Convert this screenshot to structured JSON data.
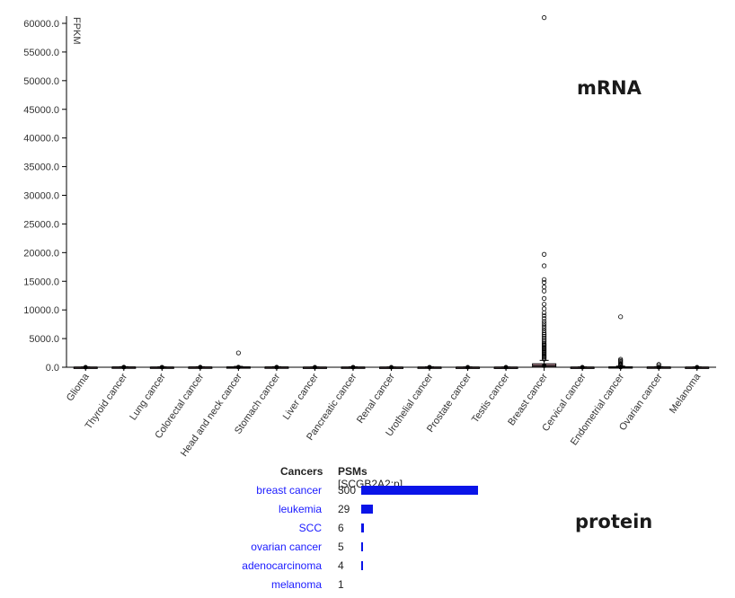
{
  "mrna_label": "mRNA",
  "protein_label": "protein",
  "chart_data": {
    "type": "box",
    "ylabel": "FPKM",
    "ylim": [
      0,
      60000
    ],
    "y_ticks": [
      "0.0",
      "5000.0",
      "10000.0",
      "15000.0",
      "20000.0",
      "25000.0",
      "30000.0",
      "35000.0",
      "40000.0",
      "45000.0",
      "50000.0",
      "55000.0",
      "60000.0"
    ],
    "y_tick_values": [
      0,
      5000,
      10000,
      15000,
      20000,
      25000,
      30000,
      35000,
      40000,
      45000,
      50000,
      55000,
      60000
    ],
    "categories": [
      "Glioma",
      "Thyroid cancer",
      "Lung cancer",
      "Colorectal cancer",
      "Head and neck cancer",
      "Stomach cancer",
      "Liver cancer",
      "Pancreatic cancer",
      "Renal cancer",
      "Urothelial cancer",
      "Prostate cancer",
      "Testis cancer",
      "Breast cancer",
      "Cervical cancer",
      "Endometrial cancer",
      "Ovarian cancer",
      "Melanoma"
    ],
    "boxes": [
      {
        "q1": 0,
        "median": 5,
        "q3": 20,
        "whisker_high": 60,
        "outliers": []
      },
      {
        "q1": 0,
        "median": 10,
        "q3": 40,
        "whisker_high": 100,
        "outliers": []
      },
      {
        "q1": 0,
        "median": 8,
        "q3": 30,
        "whisker_high": 80,
        "outliers": []
      },
      {
        "q1": 0,
        "median": 10,
        "q3": 35,
        "whisker_high": 90,
        "outliers": []
      },
      {
        "q1": 0,
        "median": 15,
        "q3": 60,
        "whisker_high": 150,
        "outliers": [
          2500
        ]
      },
      {
        "q1": 0,
        "median": 10,
        "q3": 40,
        "whisker_high": 100,
        "outliers": []
      },
      {
        "q1": 0,
        "median": 5,
        "q3": 20,
        "whisker_high": 50,
        "outliers": []
      },
      {
        "q1": 0,
        "median": 8,
        "q3": 30,
        "whisker_high": 80,
        "outliers": []
      },
      {
        "q1": 0,
        "median": 5,
        "q3": 20,
        "whisker_high": 50,
        "outliers": []
      },
      {
        "q1": 0,
        "median": 8,
        "q3": 30,
        "whisker_high": 80,
        "outliers": []
      },
      {
        "q1": 0,
        "median": 5,
        "q3": 20,
        "whisker_high": 60,
        "outliers": []
      },
      {
        "q1": 0,
        "median": 5,
        "q3": 15,
        "whisker_high": 40,
        "outliers": []
      },
      {
        "q1": 30,
        "median": 250,
        "q3": 600,
        "whisker_high": 1200,
        "outliers": [
          1400,
          1600,
          1800,
          2000,
          2200,
          2400,
          2600,
          2800,
          3000,
          3200,
          3400,
          3600,
          3800,
          4000,
          4200,
          4500,
          4800,
          5100,
          5400,
          5700,
          6000,
          6400,
          6800,
          7200,
          7600,
          8000,
          8500,
          9000,
          9500,
          10200,
          11000,
          12000,
          13300,
          14000,
          14800,
          15300,
          17700,
          19700,
          61000
        ]
      },
      {
        "q1": 0,
        "median": 5,
        "q3": 20,
        "whisker_high": 60,
        "outliers": []
      },
      {
        "q1": 0,
        "median": 20,
        "q3": 80,
        "whisker_high": 200,
        "outliers": [
          300,
          450,
          600,
          800,
          1000,
          1200,
          1400,
          8800
        ]
      },
      {
        "q1": 0,
        "median": 10,
        "q3": 40,
        "whisker_high": 100,
        "outliers": [
          300,
          500
        ]
      },
      {
        "q1": 0,
        "median": 5,
        "q3": 20,
        "whisker_high": 60,
        "outliers": []
      }
    ]
  },
  "protein": {
    "header_cancers": "Cancers",
    "header_psms": "PSMs",
    "header_psms_sub": "[SCGB2A2:p]",
    "max_psm": 300,
    "rows": [
      {
        "cancer": "breast cancer",
        "psms": "300",
        "value": 300
      },
      {
        "cancer": "leukemia",
        "psms": "29",
        "value": 29
      },
      {
        "cancer": "SCC",
        "psms": "6",
        "value": 6
      },
      {
        "cancer": "ovarian cancer",
        "psms": "5",
        "value": 5
      },
      {
        "cancer": "adenocarcinoma",
        "psms": "4",
        "value": 4
      },
      {
        "cancer": "melanoma",
        "psms": "1",
        "value": 1
      }
    ]
  }
}
